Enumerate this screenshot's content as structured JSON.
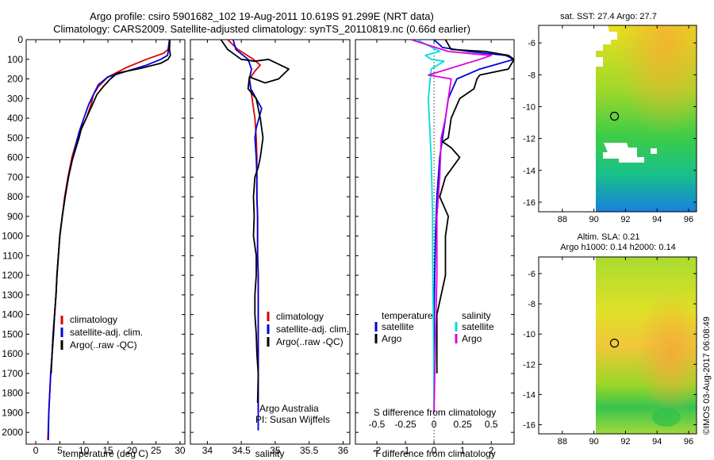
{
  "header": {
    "title_line1": "Argo profile: csiro 5901682_102 19-Aug-2011 10.619S 91.299E (NRT data)",
    "title_line2": "Climatology: CARS2009. Satellite-adjusted climatology: synTS_20110819.nc (0.66d earlier)"
  },
  "colors": {
    "climatology": "#dd0000",
    "satellite": "#0000dd",
    "argo": "#000000",
    "sal_satellite": "#00dddd",
    "sal_argo": "#dd00dd"
  },
  "credits": {
    "org": "Argo Australia",
    "pi": "PI: Susan Wijffels",
    "stamp": "©IMOS 03-Aug-2017 06:08:49"
  },
  "chart_data": [
    {
      "id": "temperature",
      "type": "line",
      "xlabel": "temperature (deg C)",
      "ylabel": "",
      "xlim": [
        -2,
        31
      ],
      "ylim": [
        2060,
        0
      ],
      "xticks": [
        0,
        5,
        10,
        15,
        20,
        25,
        30
      ],
      "xtick_labels": [
        "0",
        "5",
        "10",
        "15",
        "20",
        "25",
        "30"
      ],
      "yticks": [
        0,
        100,
        200,
        300,
        400,
        500,
        600,
        700,
        800,
        900,
        1000,
        1100,
        1200,
        1300,
        1400,
        1500,
        1600,
        1700,
        1800,
        1900,
        2000
      ],
      "ytick_labels": [
        "0",
        "100",
        "200",
        "300",
        "400",
        "500",
        "600",
        "700",
        "800",
        "900",
        "1000",
        "1100",
        "1200",
        "1300",
        "1400",
        "1500",
        "1600",
        "1700",
        "1800",
        "1900",
        "2000"
      ],
      "legend": [
        "climatology",
        "satellite-adj. clim.",
        "Argo(..raw -QC)"
      ],
      "series": [
        {
          "name": "climatology",
          "color": "#dd0000",
          "x": [
            27.8,
            27.5,
            26.5,
            23,
            19,
            15,
            13,
            12,
            11.5,
            10.5,
            9.6,
            8.7,
            7.5,
            6.7,
            6,
            5.5,
            5,
            4.7,
            4.4,
            4.2,
            3.9,
            3.6,
            3.4,
            3.1,
            2.9,
            2.7,
            2.5
          ],
          "depth": [
            0,
            50,
            70,
            100,
            140,
            190,
            240,
            280,
            330,
            400,
            450,
            500,
            600,
            700,
            800,
            900,
            1000,
            1100,
            1200,
            1300,
            1400,
            1500,
            1600,
            1700,
            1800,
            1900,
            2040
          ]
        },
        {
          "name": "satellite-adj. clim.",
          "color": "#0000dd",
          "x": [
            27.8,
            27.6,
            27.4,
            26,
            23,
            19,
            15,
            13,
            12,
            11,
            10,
            9,
            7.7,
            6.8,
            6.1,
            5.5,
            5,
            4.7,
            4.4,
            4.2,
            3.9,
            3.6,
            3.4,
            3.1,
            2.9,
            2.7,
            2.6
          ],
          "depth": [
            0,
            50,
            80,
            100,
            130,
            160,
            190,
            230,
            280,
            330,
            400,
            470,
            600,
            700,
            800,
            900,
            1000,
            1100,
            1200,
            1300,
            1400,
            1500,
            1600,
            1700,
            1800,
            1900,
            2040
          ]
        },
        {
          "name": "Argo(..raw -QC)",
          "color": "#000000",
          "x": [
            27.9,
            27.8,
            28,
            27.5,
            26,
            22,
            17,
            15.5,
            14,
            12.7,
            11.8,
            10.5,
            9.5,
            9,
            8.5,
            7.5,
            6.8,
            6.1,
            5.5,
            5,
            4.7,
            4.4,
            4.2,
            3.9,
            3.7,
            3.4,
            3.2
          ],
          "depth": [
            0,
            50,
            80,
            100,
            120,
            145,
            170,
            200,
            240,
            280,
            330,
            400,
            450,
            500,
            540,
            620,
            700,
            800,
            900,
            1000,
            1100,
            1200,
            1300,
            1400,
            1500,
            1600,
            1700
          ]
        }
      ]
    },
    {
      "id": "salinity",
      "type": "line",
      "xlabel": "salinity",
      "xlim": [
        33.75,
        36.1
      ],
      "ylim": [
        2060,
        0
      ],
      "xticks": [
        34,
        34.5,
        35,
        35.5,
        36
      ],
      "xtick_labels": [
        "34",
        "34.5",
        "35",
        "35.5",
        "36"
      ],
      "legend": [
        "climatology",
        "satellite-adj. clim.",
        "Argo(..raw -QC)"
      ],
      "series": [
        {
          "name": "climatology",
          "color": "#dd0000",
          "x": [
            34.3,
            34.45,
            34.68,
            34.78,
            34.7,
            34.62,
            34.66,
            34.7,
            34.72,
            34.73,
            34.73,
            34.73,
            34.74,
            34.74,
            34.74,
            34.75,
            34.75,
            34.75,
            34.75,
            34.75,
            34.75,
            34.75,
            34.75
          ],
          "depth": [
            0,
            50,
            100,
            130,
            160,
            200,
            300,
            400,
            500,
            600,
            700,
            800,
            900,
            1000,
            1100,
            1200,
            1300,
            1400,
            1500,
            1600,
            1700,
            1800,
            1900
          ]
        },
        {
          "name": "satellite-adj. clim.",
          "color": "#0000dd",
          "x": [
            34.38,
            34.42,
            34.6,
            34.65,
            34.62,
            34.64,
            34.8,
            34.72,
            34.7,
            34.72,
            34.73,
            34.73,
            34.74,
            34.74,
            34.74,
            34.75,
            34.75,
            34.75,
            34.75,
            34.75,
            34.75,
            34.75
          ],
          "depth": [
            0,
            50,
            100,
            150,
            200,
            250,
            350,
            450,
            500,
            600,
            700,
            800,
            900,
            1000,
            1100,
            1200,
            1300,
            1400,
            1500,
            1600,
            1700,
            1990
          ]
        },
        {
          "name": "Argo(..raw -QC)",
          "color": "#000000",
          "x": [
            34.2,
            34.3,
            34.5,
            34.7,
            34.9,
            35.2,
            35.05,
            34.85,
            34.62,
            34.6,
            34.72,
            34.78,
            34.82,
            34.78,
            34.75,
            34.7,
            34.68,
            34.69,
            34.68,
            34.72,
            34.72,
            34.7,
            34.7,
            34.72,
            34.73,
            34.75,
            34.74
          ],
          "depth": [
            0,
            50,
            100,
            110,
            100,
            150,
            200,
            220,
            190,
            250,
            300,
            400,
            500,
            600,
            650,
            700,
            800,
            900,
            1000,
            1100,
            1200,
            1300,
            1400,
            1500,
            1600,
            1700,
            1850
          ]
        }
      ]
    },
    {
      "id": "difference",
      "type": "line",
      "xlabel": "T difference from climatology",
      "xlabel_top": "S difference from climatology",
      "xlim": [
        -2.75,
        2.8
      ],
      "ylim": [
        2060,
        0
      ],
      "xticks": [
        -2,
        -1,
        0,
        1,
        2
      ],
      "xtick_labels": [
        "-2",
        "-1",
        "0",
        "1",
        "2"
      ],
      "s_ticks": [
        -0.5,
        -0.25,
        0,
        0.25,
        0.5
      ],
      "s_tick_labels": [
        "-0.5",
        "-0.25",
        "0",
        "0.25",
        "0.5"
      ],
      "s_scale": 4,
      "legend_groups": [
        {
          "title": "temperature",
          "entries": [
            "satellite",
            "Argo"
          ]
        },
        {
          "title": "salinity",
          "entries": [
            "satellite",
            "Argo"
          ]
        }
      ],
      "series": [
        {
          "name": "temperature satellite",
          "color": "#0000dd",
          "x": [
            0,
            0.3,
            1.2,
            2.5,
            2.8,
            1.6,
            0.8,
            0.5,
            0.4,
            0.3,
            0.2,
            0.1,
            0.05,
            0,
            0
          ],
          "depth": [
            0,
            40,
            60,
            80,
            100,
            150,
            200,
            300,
            400,
            500,
            600,
            800,
            1000,
            1400,
            1800
          ]
        },
        {
          "name": "temperature Argo",
          "color": "#000000",
          "x": [
            0.4,
            0.6,
            1.8,
            2.6,
            2.8,
            2.6,
            1.6,
            1.5,
            1.4,
            0.9,
            0.6,
            0.5,
            0.3,
            0.6,
            0.9,
            0.4,
            0.2,
            0.5,
            0.4,
            0.4,
            0.1,
            0.1
          ],
          "depth": [
            0,
            50,
            60,
            80,
            100,
            150,
            180,
            200,
            250,
            300,
            400,
            500,
            520,
            550,
            600,
            700,
            800,
            900,
            1000,
            1200,
            1400,
            1700
          ]
        },
        {
          "name": "salinity satellite",
          "color": "#00dddd",
          "x": [
            -0.6,
            0.2,
            -0.3,
            -0.1,
            0.35,
            -0.1,
            -0.2,
            -0.1,
            -0.05,
            -0.05,
            -0.02,
            0
          ],
          "depth": [
            0,
            60,
            80,
            100,
            110,
            150,
            300,
            600,
            900,
            1100,
            1500,
            1900
          ]
        },
        {
          "name": "salinity Argo",
          "color": "#dd00dd",
          "x": [
            -0.8,
            0.5,
            1.2,
            2.0,
            1.6,
            -0.2,
            0.6,
            0.5,
            0.4,
            0.25,
            0.2,
            0.1,
            0.1,
            0.05,
            0
          ],
          "depth": [
            0,
            60,
            70,
            80,
            100,
            180,
            200,
            300,
            400,
            500,
            700,
            900,
            1200,
            1500,
            1900
          ]
        }
      ]
    },
    {
      "id": "sst_map",
      "type": "heatmap",
      "title": "sat. SST: 27.4  Argo: 27.7",
      "xlim": [
        86.5,
        96.5
      ],
      "ylim": [
        -16.6,
        -4.9
      ],
      "xticks": [
        88,
        90,
        92,
        94,
        96
      ],
      "xtick_labels": [
        "88",
        "90",
        "92",
        "94",
        "96"
      ],
      "yticks": [
        -6,
        -8,
        -10,
        -12,
        -14,
        -16
      ],
      "ytick_labels": [
        "-6",
        "-8",
        "-10",
        "-12",
        "-14",
        "-16"
      ],
      "marker": {
        "lon": 91.3,
        "lat": -10.6
      }
    },
    {
      "id": "sla_map",
      "type": "heatmap",
      "title": "Altim. SLA: 0.21",
      "subtitle": "Argo h1000: 0.14 h2000: 0.14",
      "xlim": [
        86.5,
        96.5
      ],
      "ylim": [
        -16.6,
        -4.9
      ],
      "xticks": [
        88,
        90,
        92,
        94,
        96
      ],
      "xtick_labels": [
        "88",
        "90",
        "92",
        "94",
        "96"
      ],
      "yticks": [
        -6,
        -8,
        -10,
        -12,
        -14,
        -16
      ],
      "ytick_labels": [
        "-6",
        "-8",
        "-10",
        "-12",
        "-14",
        "-16"
      ],
      "marker": {
        "lon": 91.3,
        "lat": -10.6
      }
    }
  ]
}
